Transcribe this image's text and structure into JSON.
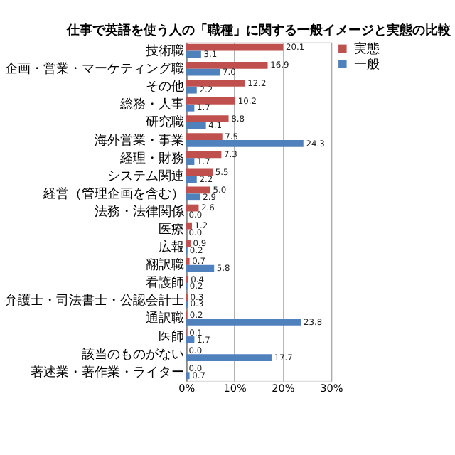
{
  "chart_data": {
    "type": "bar",
    "orientation": "horizontal",
    "title": "仕事で英語を使う人の「職種」に関する一般イメージと実態の比較",
    "categories": [
      "技術職",
      "企画・営業・マーケティング職",
      "その他",
      "総務・人事",
      "研究職",
      "海外営業・事業",
      "経理・財務",
      "システム関連",
      "経営（管理企画を含む）",
      "法務・法律関係",
      "医療",
      "広報",
      "翻訳職",
      "看護師",
      "弁護士・司法書士・公認会計士",
      "通訳職",
      "医師",
      "該当のものがない",
      "著述業・著作業・ライター"
    ],
    "series": [
      {
        "name": "実態",
        "color": "#c0504d",
        "values": [
          20.1,
          16.9,
          12.2,
          10.2,
          8.8,
          7.5,
          7.3,
          5.5,
          5.0,
          2.6,
          1.2,
          0.9,
          0.7,
          0.4,
          0.3,
          0.2,
          0.1,
          0.0,
          0.0
        ],
        "value_labels": [
          "20.1",
          "16.9",
          "12.2",
          "10.2",
          "8.8",
          "7.5",
          "7.3",
          "5.5",
          "5.0",
          "2.6",
          "1.2",
          "0.9",
          "0.7",
          "0.4",
          "0.3",
          "0.2",
          "0.1",
          "0.0",
          "0.0"
        ]
      },
      {
        "name": "一般",
        "color": "#4f81bd",
        "values": [
          3.1,
          7.0,
          2.2,
          1.7,
          4.1,
          24.3,
          1.7,
          2.2,
          2.9,
          0.0,
          0.0,
          0.2,
          5.8,
          0.2,
          0.3,
          23.8,
          1.7,
          17.7,
          0.7
        ],
        "value_labels": [
          "3.1",
          "7.0",
          "2.2",
          "1.7",
          "4.1",
          "24.3",
          "1.7",
          "2.2",
          "2.9",
          "0.0",
          "0.0",
          "0.2",
          "5.8",
          "0.2",
          "0.3",
          "23.8",
          "1.7",
          "17.7",
          "0.7"
        ]
      }
    ],
    "xlim": [
      0,
      30
    ],
    "xticks": [
      {
        "value": 0,
        "label": "0%"
      },
      {
        "value": 10,
        "label": "10%"
      },
      {
        "value": 20,
        "label": "20%"
      },
      {
        "value": 30,
        "label": "30%"
      }
    ],
    "grid": "x",
    "legend": "right"
  }
}
